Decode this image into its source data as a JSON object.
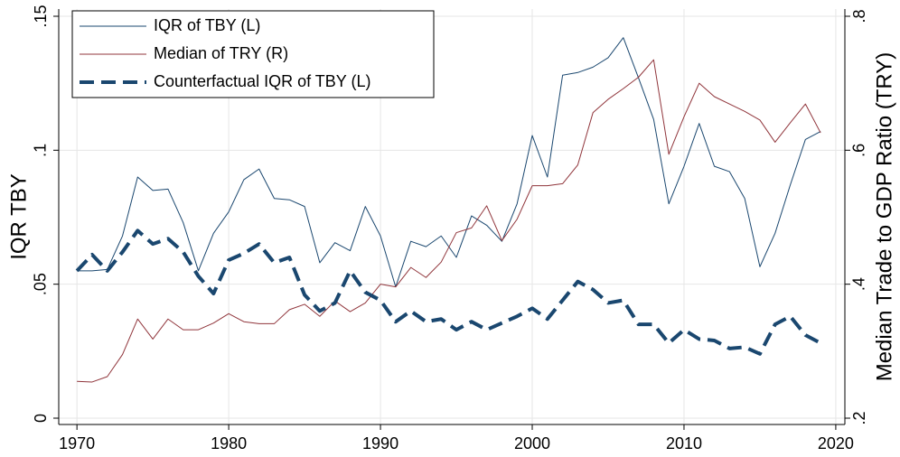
{
  "chart_data": {
    "type": "line",
    "x": [
      1970,
      1971,
      1972,
      1973,
      1974,
      1975,
      1976,
      1977,
      1978,
      1979,
      1980,
      1981,
      1982,
      1983,
      1984,
      1985,
      1986,
      1987,
      1988,
      1989,
      1990,
      1991,
      1992,
      1993,
      1994,
      1995,
      1996,
      1997,
      1998,
      1999,
      2000,
      2001,
      2002,
      2003,
      2004,
      2005,
      2006,
      2007,
      2008,
      2009,
      2010,
      2011,
      2012,
      2013,
      2014,
      2015,
      2016,
      2017,
      2018,
      2019
    ],
    "series": [
      {
        "name": "IQR of TBY (L)",
        "color": "#1a476f",
        "style": "solid",
        "width": 1,
        "values": [
          0.055,
          0.055,
          0.0555,
          0.068,
          0.09,
          0.085,
          0.0855,
          0.073,
          0.055,
          0.069,
          0.077,
          0.089,
          0.093,
          0.082,
          0.0815,
          0.079,
          0.058,
          0.0655,
          0.0625,
          0.079,
          0.068,
          0.049,
          0.066,
          0.064,
          0.068,
          0.06,
          0.0755,
          0.072,
          0.066,
          0.08,
          0.1055,
          0.09,
          0.128,
          0.129,
          0.131,
          0.1345,
          0.142,
          0.127,
          0.1115,
          0.08,
          0.094,
          0.11,
          0.094,
          0.092,
          0.082,
          0.0565,
          0.069,
          0.087,
          0.104,
          0.107
        ]
      },
      {
        "name": "Median of TRY (R)",
        "color": "#90353b",
        "style": "solid",
        "width": 1,
        "axis": "y2",
        "values": [
          0.255,
          0.254,
          0.262,
          0.295,
          0.348,
          0.318,
          0.348,
          0.332,
          0.332,
          0.342,
          0.356,
          0.344,
          0.341,
          0.341,
          0.362,
          0.37,
          0.352,
          0.375,
          0.359,
          0.372,
          0.4,
          0.396,
          0.425,
          0.41,
          0.433,
          0.477,
          0.484,
          0.517,
          0.465,
          0.497,
          0.547,
          0.547,
          0.55,
          0.578,
          0.656,
          0.676,
          0.692,
          0.709,
          0.735,
          0.594,
          0.65,
          0.7,
          0.68,
          0.669,
          0.658,
          0.645,
          0.612,
          0.641,
          0.669,
          0.626
        ]
      },
      {
        "name": "Counterfactual IQR of TBY (L)",
        "color": "#1a476f",
        "style": "dashed",
        "width": 4,
        "values": [
          0.055,
          0.061,
          0.055,
          0.062,
          0.07,
          0.065,
          0.067,
          0.062,
          0.053,
          0.0465,
          0.059,
          0.0615,
          0.065,
          0.058,
          0.06,
          0.046,
          0.04,
          0.043,
          0.055,
          0.047,
          0.044,
          0.036,
          0.04,
          0.036,
          0.037,
          0.033,
          0.036,
          0.033,
          0.0355,
          0.038,
          0.041,
          0.037,
          0.044,
          0.051,
          0.048,
          0.043,
          0.044,
          0.035,
          0.035,
          0.028,
          0.033,
          0.0295,
          0.029,
          0.026,
          0.0265,
          0.024,
          0.035,
          0.038,
          0.031,
          0.028
        ]
      }
    ],
    "ylabel": "IQR TBY",
    "y2label": "Median Trade to GDP Ratio (TRY)",
    "xlim": [
      1968.8,
      2020.6
    ],
    "xticks": [
      1970,
      1980,
      1990,
      2000,
      2010,
      2020
    ],
    "ylim": [
      0,
      0.15
    ],
    "yticks": [
      0,
      {
        "value": 0.05,
        "label": ".05"
      },
      {
        "value": 0.1,
        "label": ".1"
      },
      {
        "value": 0.15,
        "label": ".15"
      }
    ],
    "y2lim": [
      0.2,
      0.8
    ],
    "y2ticks": [
      {
        "value": 0.2,
        "label": ".2"
      },
      {
        "value": 0.4,
        "label": ".4"
      },
      {
        "value": 0.6,
        "label": ".6"
      },
      {
        "value": 0.8,
        "label": ".8"
      }
    ],
    "grid": true,
    "legend_position": "top-left"
  }
}
